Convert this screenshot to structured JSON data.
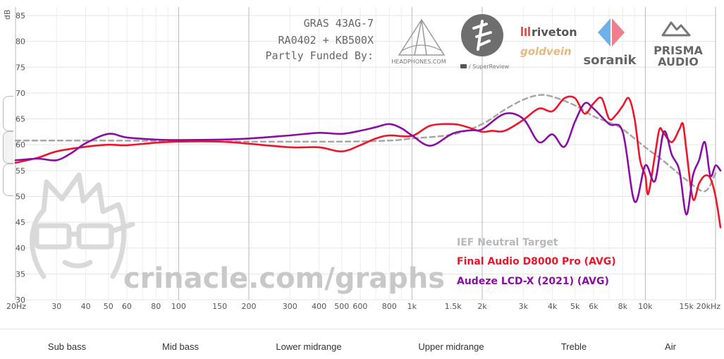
{
  "chart_data": {
    "type": "line",
    "ylabel": "dB",
    "xlabel": "",
    "x_scale": "log",
    "xlim": [
      20,
      20000
    ],
    "ylim": [
      30,
      85
    ],
    "y_ticks": [
      85,
      80,
      75,
      70,
      65,
      60,
      55,
      50,
      45,
      40,
      35,
      30
    ],
    "x_tick_labels": [
      {
        "f": 20,
        "label": "20Hz"
      },
      {
        "f": 30,
        "label": "30"
      },
      {
        "f": 40,
        "label": "40"
      },
      {
        "f": 50,
        "label": "50"
      },
      {
        "f": 60,
        "label": "60"
      },
      {
        "f": 80,
        "label": "80"
      },
      {
        "f": 100,
        "label": "100"
      },
      {
        "f": 150,
        "label": "150"
      },
      {
        "f": 200,
        "label": "200"
      },
      {
        "f": 300,
        "label": "300"
      },
      {
        "f": 400,
        "label": "400"
      },
      {
        "f": 500,
        "label": "500"
      },
      {
        "f": 600,
        "label": "600"
      },
      {
        "f": 800,
        "label": "800"
      },
      {
        "f": 1000,
        "label": "1k"
      },
      {
        "f": 1500,
        "label": "1.5k"
      },
      {
        "f": 2000,
        "label": "2k"
      },
      {
        "f": 3000,
        "label": "3k"
      },
      {
        "f": 4000,
        "label": "4k"
      },
      {
        "f": 5000,
        "label": "5k"
      },
      {
        "f": 6000,
        "label": "6k"
      },
      {
        "f": 8000,
        "label": "8k"
      },
      {
        "f": 10000,
        "label": "10k"
      },
      {
        "f": 15000,
        "label": "15k"
      },
      {
        "f": 20000,
        "label": "20kHz"
      }
    ],
    "grid": true,
    "legend_position": "bottom-right",
    "series": [
      {
        "name": "IEF Neutral Target",
        "color": "#a6a6a6",
        "dash": true,
        "points": [
          [
            20,
            60.8
          ],
          [
            50,
            60.8
          ],
          [
            100,
            60.7
          ],
          [
            200,
            60.6
          ],
          [
            500,
            60.6
          ],
          [
            800,
            60.8
          ],
          [
            1000,
            61.2
          ],
          [
            1500,
            62
          ],
          [
            2000,
            64
          ],
          [
            2500,
            66.8
          ],
          [
            3000,
            68.7
          ],
          [
            3500,
            69.6
          ],
          [
            4000,
            69.3
          ],
          [
            5000,
            67.6
          ],
          [
            6000,
            65.5
          ],
          [
            7000,
            64.3
          ],
          [
            8000,
            63
          ],
          [
            10000,
            59.5
          ],
          [
            12000,
            56.8
          ],
          [
            15000,
            53.2
          ],
          [
            18000,
            51
          ],
          [
            20000,
            54.5
          ]
        ]
      },
      {
        "name": "Final Audio D8000 Pro (AVG)",
        "color": "#f0142a",
        "dash": false,
        "points": [
          [
            20,
            56.5
          ],
          [
            25,
            57.5
          ],
          [
            30,
            58.7
          ],
          [
            40,
            59.6
          ],
          [
            50,
            60
          ],
          [
            60,
            59.9
          ],
          [
            80,
            60.4
          ],
          [
            100,
            60.6
          ],
          [
            150,
            60.6
          ],
          [
            200,
            60.2
          ],
          [
            300,
            59.5
          ],
          [
            400,
            59.5
          ],
          [
            500,
            58.7
          ],
          [
            600,
            59.9
          ],
          [
            700,
            61.2
          ],
          [
            800,
            61.8
          ],
          [
            1000,
            61.7
          ],
          [
            1200,
            63.7
          ],
          [
            1500,
            64
          ],
          [
            1700,
            63.5
          ],
          [
            2000,
            62.5
          ],
          [
            2200,
            62.7
          ],
          [
            2500,
            62.7
          ],
          [
            3000,
            64.8
          ],
          [
            3500,
            67
          ],
          [
            4000,
            66.5
          ],
          [
            4500,
            69
          ],
          [
            5000,
            69
          ],
          [
            5500,
            66
          ],
          [
            6000,
            68
          ],
          [
            6500,
            69
          ],
          [
            7000,
            65
          ],
          [
            7500,
            65.8
          ],
          [
            8000,
            67.5
          ],
          [
            8500,
            69
          ],
          [
            9000,
            65
          ],
          [
            9500,
            57
          ],
          [
            10000,
            54
          ],
          [
            10300,
            50.5
          ],
          [
            11000,
            58
          ],
          [
            11500,
            63
          ],
          [
            12000,
            62.2
          ],
          [
            13000,
            60.5
          ],
          [
            14000,
            63
          ],
          [
            14500,
            64
          ],
          [
            15000,
            59
          ],
          [
            16000,
            49.5
          ],
          [
            17000,
            52.5
          ],
          [
            18000,
            54
          ],
          [
            19000,
            53.5
          ],
          [
            20000,
            50
          ],
          [
            21000,
            44
          ]
        ]
      },
      {
        "name": "Audeze LCD-X (2021) (AVG)",
        "color": "#8a0ea3",
        "dash": false,
        "points": [
          [
            20,
            57
          ],
          [
            25,
            57.3
          ],
          [
            30,
            57
          ],
          [
            35,
            58.5
          ],
          [
            40,
            60.3
          ],
          [
            50,
            62.1
          ],
          [
            60,
            61.4
          ],
          [
            80,
            61
          ],
          [
            100,
            60.9
          ],
          [
            150,
            61
          ],
          [
            200,
            61.2
          ],
          [
            300,
            61.8
          ],
          [
            400,
            62.3
          ],
          [
            500,
            62.1
          ],
          [
            600,
            62.7
          ],
          [
            700,
            63.4
          ],
          [
            800,
            64
          ],
          [
            900,
            63.2
          ],
          [
            1000,
            61.8
          ],
          [
            1200,
            59.8
          ],
          [
            1500,
            62.2
          ],
          [
            1800,
            62.8
          ],
          [
            2000,
            63
          ],
          [
            2500,
            66
          ],
          [
            3000,
            65
          ],
          [
            3500,
            60.5
          ],
          [
            4000,
            62
          ],
          [
            4500,
            59.6
          ],
          [
            5000,
            64.5
          ],
          [
            5500,
            68
          ],
          [
            6000,
            67
          ],
          [
            7000,
            64
          ],
          [
            8000,
            62.5
          ],
          [
            9000,
            49
          ],
          [
            10000,
            56
          ],
          [
            11000,
            53
          ],
          [
            12000,
            62.5
          ],
          [
            13000,
            58
          ],
          [
            14000,
            55
          ],
          [
            15000,
            46.5
          ],
          [
            16000,
            54
          ],
          [
            17000,
            57
          ],
          [
            18000,
            60.5
          ],
          [
            19000,
            54
          ],
          [
            20000,
            56
          ],
          [
            21000,
            55
          ]
        ]
      }
    ]
  },
  "rig": {
    "line1": "GRAS 43AG-7",
    "line2": "RA0402 + KB500X",
    "line3": "Partly Funded By:"
  },
  "watermark": "crinacle.com/graphs",
  "sponsors": {
    "headphones_com": "HEADPHONES.COM",
    "superreview": "/ SuperReview",
    "riveton": "riveton",
    "goldvein": "goldvein",
    "soranik": "soranik",
    "prisma_1": "PRISMA",
    "prisma_2": "AUDIO"
  },
  "bands": [
    {
      "label": "Sub bass"
    },
    {
      "label": "Mid bass"
    },
    {
      "label": "Lower midrange"
    },
    {
      "label": "Upper midrange"
    },
    {
      "label": "Treble"
    },
    {
      "label": "Air"
    }
  ]
}
